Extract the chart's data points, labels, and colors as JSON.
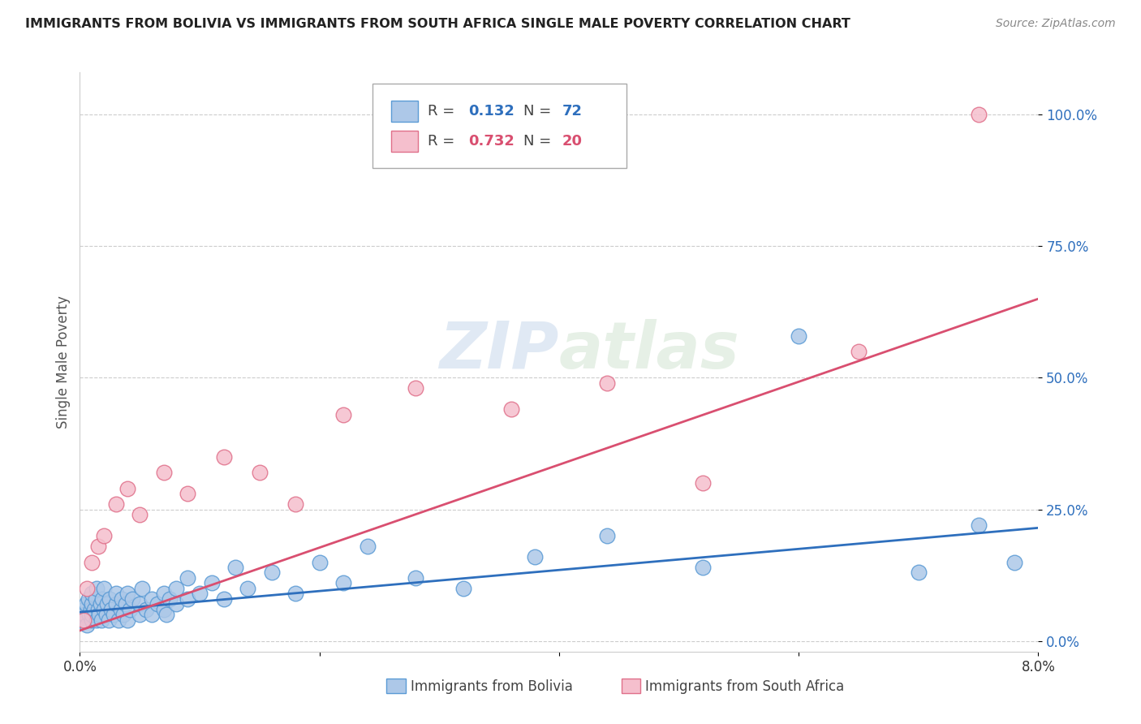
{
  "title": "IMMIGRANTS FROM BOLIVIA VS IMMIGRANTS FROM SOUTH AFRICA SINGLE MALE POVERTY CORRELATION CHART",
  "source": "Source: ZipAtlas.com",
  "ylabel": "Single Male Poverty",
  "xlim": [
    0.0,
    0.08
  ],
  "ylim": [
    -0.02,
    1.08
  ],
  "xticks": [
    0.0,
    0.02,
    0.04,
    0.06,
    0.08
  ],
  "xtick_labels": [
    "0.0%",
    "",
    "",
    "",
    "8.0%"
  ],
  "ytick_labels": [
    "0.0%",
    "25.0%",
    "50.0%",
    "75.0%",
    "100.0%"
  ],
  "yticks": [
    0.0,
    0.25,
    0.5,
    0.75,
    1.0
  ],
  "bolivia_color": "#adc8e8",
  "bolivia_edge": "#5b9bd5",
  "sa_color": "#f5bfcd",
  "sa_edge": "#e0708a",
  "trend_bolivia_color": "#2e6fbd",
  "trend_sa_color": "#d94f70",
  "watermark": "ZIPatlas",
  "bolivia_x": [
    0.0002,
    0.0003,
    0.0004,
    0.0005,
    0.0006,
    0.0007,
    0.0008,
    0.0009,
    0.001,
    0.001,
    0.001,
    0.001,
    0.0012,
    0.0013,
    0.0014,
    0.0014,
    0.0015,
    0.0016,
    0.0017,
    0.0018,
    0.0019,
    0.002,
    0.002,
    0.0022,
    0.0023,
    0.0024,
    0.0025,
    0.0026,
    0.0028,
    0.003,
    0.003,
    0.0032,
    0.0034,
    0.0035,
    0.0036,
    0.0038,
    0.004,
    0.004,
    0.0042,
    0.0044,
    0.005,
    0.005,
    0.0052,
    0.0055,
    0.006,
    0.006,
    0.0065,
    0.007,
    0.007,
    0.0072,
    0.0075,
    0.008,
    0.008,
    0.009,
    0.009,
    0.01,
    0.011,
    0.012,
    0.013,
    0.014,
    0.016,
    0.018,
    0.02,
    0.022,
    0.024,
    0.028,
    0.032,
    0.038,
    0.044,
    0.052,
    0.06,
    0.07,
    0.075,
    0.078
  ],
  "bolivia_y": [
    0.04,
    0.06,
    0.05,
    0.07,
    0.03,
    0.08,
    0.05,
    0.06,
    0.04,
    0.07,
    0.09,
    0.05,
    0.06,
    0.08,
    0.04,
    0.1,
    0.06,
    0.05,
    0.07,
    0.04,
    0.08,
    0.06,
    0.1,
    0.05,
    0.07,
    0.04,
    0.08,
    0.06,
    0.05,
    0.07,
    0.09,
    0.04,
    0.06,
    0.08,
    0.05,
    0.07,
    0.04,
    0.09,
    0.06,
    0.08,
    0.05,
    0.07,
    0.1,
    0.06,
    0.05,
    0.08,
    0.07,
    0.06,
    0.09,
    0.05,
    0.08,
    0.07,
    0.1,
    0.08,
    0.12,
    0.09,
    0.11,
    0.08,
    0.14,
    0.1,
    0.13,
    0.09,
    0.15,
    0.11,
    0.18,
    0.12,
    0.1,
    0.16,
    0.2,
    0.14,
    0.58,
    0.13,
    0.22,
    0.15
  ],
  "sa_x": [
    0.0003,
    0.0006,
    0.001,
    0.0015,
    0.002,
    0.003,
    0.004,
    0.005,
    0.007,
    0.009,
    0.012,
    0.015,
    0.018,
    0.022,
    0.028,
    0.036,
    0.044,
    0.052,
    0.065,
    0.075
  ],
  "sa_y": [
    0.04,
    0.1,
    0.15,
    0.18,
    0.2,
    0.26,
    0.29,
    0.24,
    0.32,
    0.28,
    0.35,
    0.32,
    0.26,
    0.43,
    0.48,
    0.44,
    0.49,
    0.3,
    0.55,
    1.0
  ],
  "trend_bolivia_x0": 0.0,
  "trend_bolivia_x1": 0.08,
  "trend_bolivia_y0": 0.055,
  "trend_bolivia_y1": 0.215,
  "trend_sa_x0": 0.0,
  "trend_sa_x1": 0.08,
  "trend_sa_y0": 0.02,
  "trend_sa_y1": 0.65
}
